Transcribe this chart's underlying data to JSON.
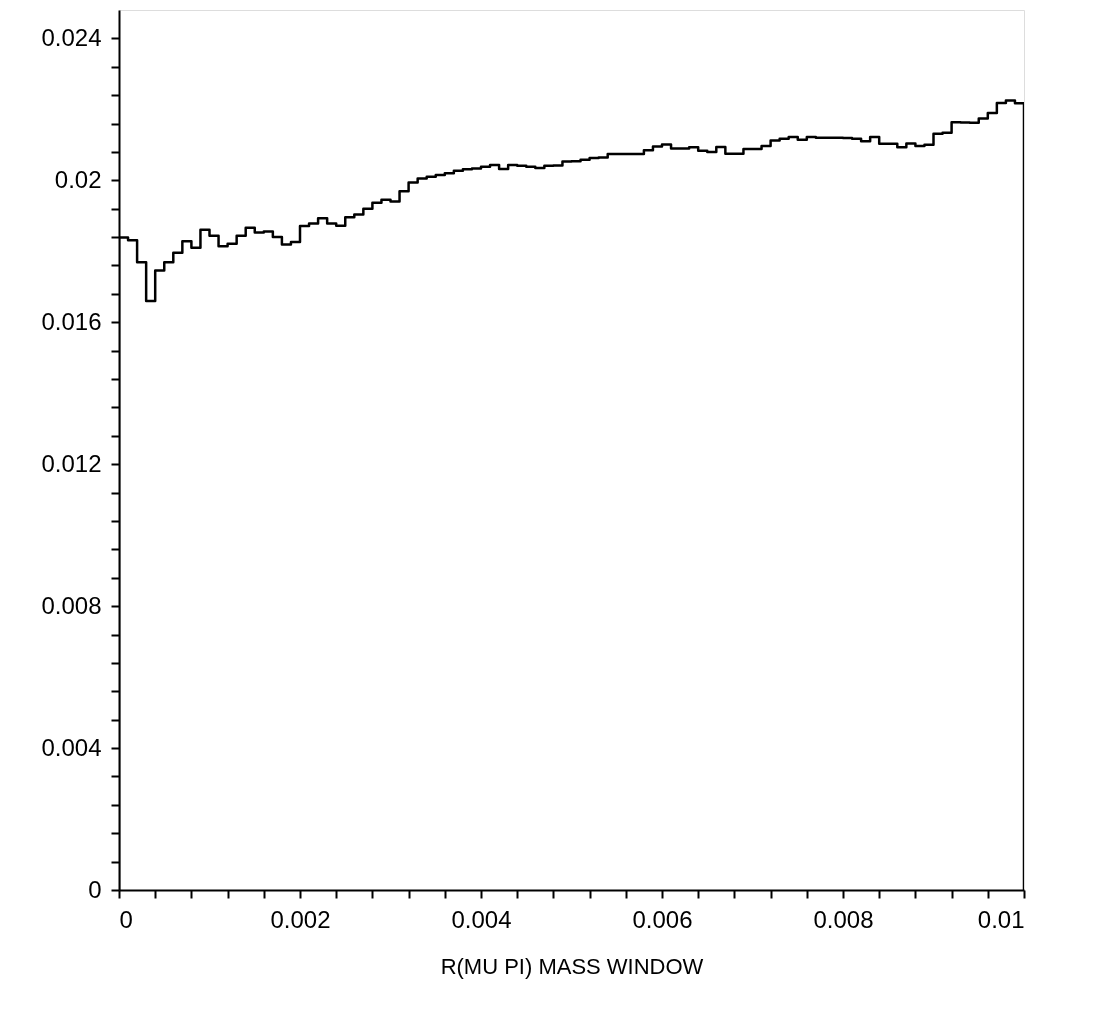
{
  "chart_data": {
    "type": "histogram",
    "xlabel": "R(MU PI) MASS WINDOW",
    "bins": [
      0,
      0.0001,
      0.0002,
      0.0003,
      0.0004,
      0.0005,
      0.0006,
      0.0007,
      0.0008,
      0.0009,
      0.001,
      0.0011,
      0.0012,
      0.0013,
      0.0014,
      0.0015,
      0.0016,
      0.0017,
      0.0018,
      0.0019,
      0.002,
      0.0021,
      0.0022,
      0.0023,
      0.0024,
      0.0025,
      0.0026,
      0.0027,
      0.0028,
      0.0029,
      0.003,
      0.0031,
      0.0032,
      0.0033,
      0.0034,
      0.0035,
      0.0036,
      0.0037,
      0.0038,
      0.0039,
      0.004,
      0.0041,
      0.0042,
      0.0043,
      0.0044,
      0.0045,
      0.0046,
      0.0047,
      0.0048,
      0.0049,
      0.005,
      0.0051,
      0.0052,
      0.0053,
      0.0054,
      0.0055,
      0.0056,
      0.0057,
      0.0058,
      0.0059,
      0.006,
      0.0061,
      0.0062,
      0.0063,
      0.0064,
      0.0065,
      0.0066,
      0.0067,
      0.0068,
      0.0069,
      0.007,
      0.0071,
      0.0072,
      0.0073,
      0.0074,
      0.0075,
      0.0076,
      0.0077,
      0.0078,
      0.0079,
      0.008,
      0.0081,
      0.0082,
      0.0083,
      0.0084,
      0.0085,
      0.0086,
      0.0087,
      0.0088,
      0.0089,
      0.009,
      0.0091,
      0.0092,
      0.0093,
      0.0094,
      0.0095,
      0.0096,
      0.0097,
      0.0098,
      0.0099,
      0.01
    ],
    "values": [
      0.01839,
      0.01831,
      0.01769,
      0.0166,
      0.01746,
      0.01769,
      0.01796,
      0.01828,
      0.0181,
      0.01861,
      0.01844,
      0.01814,
      0.01821,
      0.01844,
      0.01866,
      0.01853,
      0.01856,
      0.0184,
      0.01819,
      0.01826,
      0.01871,
      0.01878,
      0.01893,
      0.01878,
      0.01872,
      0.01896,
      0.01904,
      0.0192,
      0.01937,
      0.01945,
      0.0194,
      0.01969,
      0.01994,
      0.02005,
      0.0201,
      0.02015,
      0.0202,
      0.02027,
      0.02031,
      0.02033,
      0.02038,
      0.02043,
      0.02032,
      0.02043,
      0.02041,
      0.02038,
      0.02035,
      0.02041,
      0.02042,
      0.02053,
      0.02054,
      0.02058,
      0.02063,
      0.02064,
      0.02074,
      0.02074,
      0.02074,
      0.02074,
      0.02085,
      0.02095,
      0.02101,
      0.0209,
      0.0209,
      0.02093,
      0.02083,
      0.0208,
      0.02094,
      0.02075,
      0.02075,
      0.02088,
      0.02088,
      0.02097,
      0.02112,
      0.02117,
      0.02122,
      0.02114,
      0.02122,
      0.0212,
      0.0212,
      0.0212,
      0.02119,
      0.02117,
      0.0211,
      0.02122,
      0.02103,
      0.02103,
      0.02093,
      0.02104,
      0.02097,
      0.021,
      0.02131,
      0.02134,
      0.02164,
      0.02163,
      0.02162,
      0.02174,
      0.0219,
      0.02218,
      0.02225,
      0.02217
    ],
    "color": "#000000",
    "xlim": [
      0,
      0.01
    ],
    "ylim": [
      0,
      0.0248
    ],
    "xticks": [
      0,
      {
        "value": 0.0004,
        "label": null
      },
      {
        "value": 0.0008,
        "label": null
      },
      {
        "value": 0.0012,
        "label": null
      },
      {
        "value": 0.0016,
        "label": null
      },
      0.002,
      {
        "value": 0.0024,
        "label": null
      },
      {
        "value": 0.0028,
        "label": null
      },
      {
        "value": 0.0032,
        "label": null
      },
      {
        "value": 0.0036,
        "label": null
      },
      0.004,
      {
        "value": 0.0044,
        "label": null
      },
      {
        "value": 0.0048,
        "label": null
      },
      {
        "value": 0.0052,
        "label": null
      },
      {
        "value": 0.0056,
        "label": null
      },
      0.006,
      {
        "value": 0.0064,
        "label": null
      },
      {
        "value": 0.0068,
        "label": null
      },
      {
        "value": 0.0072,
        "label": null
      },
      {
        "value": 0.0076,
        "label": null
      },
      0.008,
      {
        "value": 0.0084,
        "label": null
      },
      {
        "value": 0.0088,
        "label": null
      },
      {
        "value": 0.0092,
        "label": null
      },
      {
        "value": 0.0096,
        "label": null
      },
      0.01
    ],
    "yticks": [
      0,
      {
        "value": 0.0008,
        "label": null
      },
      {
        "value": 0.0016,
        "label": null
      },
      {
        "value": 0.0024,
        "label": null
      },
      {
        "value": 0.0032,
        "label": null
      },
      0.004,
      {
        "value": 0.0048,
        "label": null
      },
      {
        "value": 0.0056,
        "label": null
      },
      {
        "value": 0.0064,
        "label": null
      },
      {
        "value": 0.0072,
        "label": null
      },
      0.008,
      {
        "value": 0.0088,
        "label": null
      },
      {
        "value": 0.0096,
        "label": null
      },
      {
        "value": 0.0104,
        "label": null
      },
      {
        "value": 0.0112,
        "label": null
      },
      0.012,
      {
        "value": 0.0128,
        "label": null
      },
      {
        "value": 0.0136,
        "label": null
      },
      {
        "value": 0.0144,
        "label": null
      },
      {
        "value": 0.0152,
        "label": null
      },
      0.016,
      {
        "value": 0.0168,
        "label": null
      },
      {
        "value": 0.0176,
        "label": null
      },
      {
        "value": 0.0184,
        "label": null
      },
      {
        "value": 0.0192,
        "label": null
      },
      0.02,
      {
        "value": 0.0208,
        "label": null
      },
      {
        "value": 0.0216,
        "label": null
      },
      {
        "value": 0.0224,
        "label": null
      },
      {
        "value": 0.0232,
        "label": null
      },
      0.024
    ],
    "grid": false
  }
}
